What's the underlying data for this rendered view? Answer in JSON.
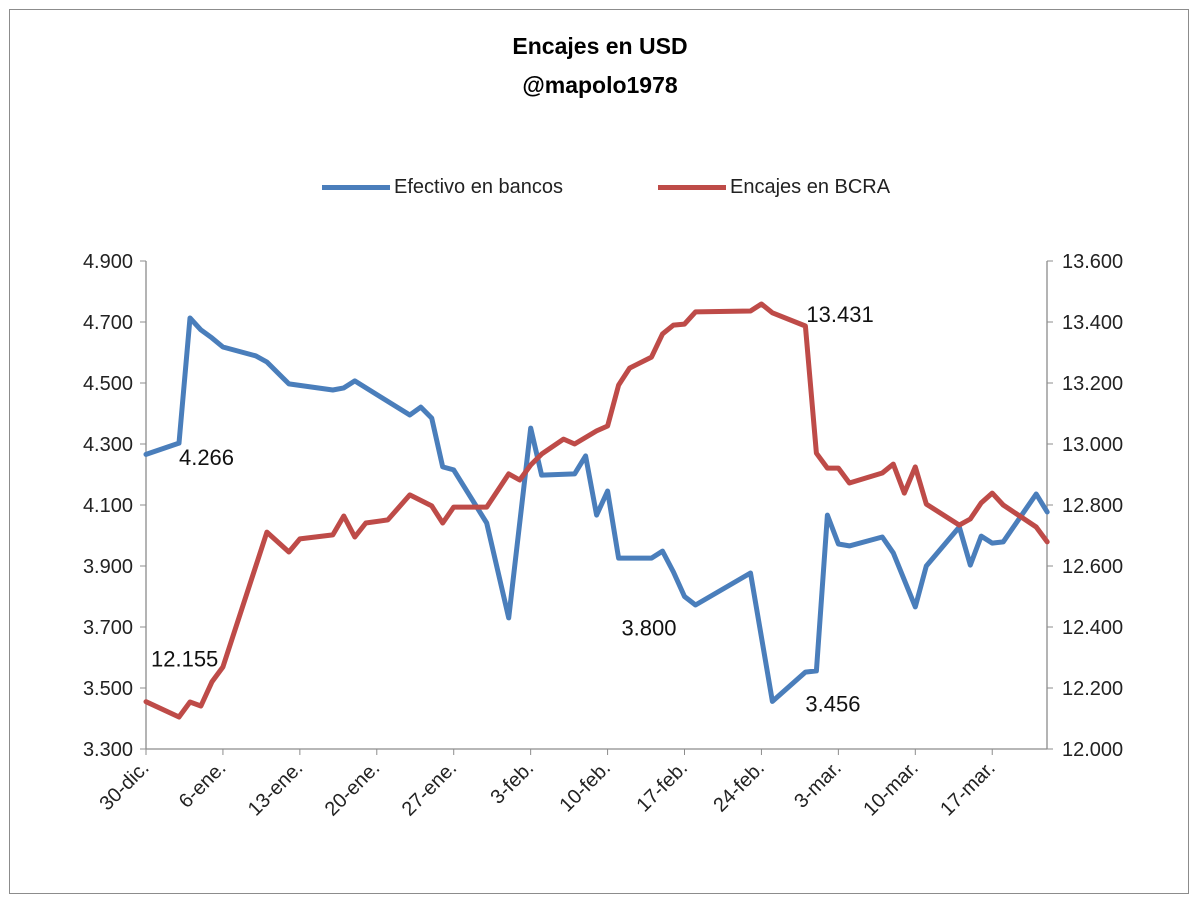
{
  "chart_data": {
    "type": "line",
    "title": "Encajes en USD",
    "subtitle": "@mapolo1978",
    "x_ticks": [
      "30-dic.",
      "6-ene.",
      "13-ene.",
      "20-ene.",
      "27-ene.",
      "3-feb.",
      "10-feb.",
      "17-feb.",
      "24-feb.",
      "3-mar.",
      "10-mar.",
      "17-mar."
    ],
    "y_left": {
      "range": [
        3300,
        4900
      ],
      "ticks": [
        "3.300",
        "3.500",
        "3.700",
        "3.900",
        "4.100",
        "4.300",
        "4.500",
        "4.700",
        "4.900"
      ]
    },
    "y_right": {
      "range": [
        12000,
        13600
      ],
      "ticks": [
        "12.000",
        "12.200",
        "12.400",
        "12.600",
        "12.800",
        "13.000",
        "13.200",
        "13.400",
        "13.600"
      ]
    },
    "grid": false,
    "legend": "top",
    "series": [
      {
        "name": "Efectivo en bancos",
        "axis": "left",
        "color": "#4a7ebb",
        "points": [
          [
            "30-dic.",
            4266
          ],
          [
            "2-ene.",
            4303
          ],
          [
            "3-ene.",
            4713
          ],
          [
            "4-ene.",
            4674
          ],
          [
            "5-ene.",
            4648
          ],
          [
            "6-ene.",
            4618
          ],
          [
            "9-ene.",
            4589
          ],
          [
            "10-ene.",
            4569
          ],
          [
            "12-ene.",
            4497
          ],
          [
            "16-ene.",
            4477
          ],
          [
            "17-ene.",
            4484
          ],
          [
            "18-ene.",
            4507
          ],
          [
            "23-ene.",
            4395
          ],
          [
            "24-ene.",
            4421
          ],
          [
            "25-ene.",
            4385
          ],
          [
            "26-ene.",
            4225
          ],
          [
            "27-ene.",
            4215
          ],
          [
            "30-ene.",
            4041
          ],
          [
            "1-feb.",
            3730
          ],
          [
            "3-feb.",
            4352
          ],
          [
            "4-feb.",
            4198
          ],
          [
            "7-feb.",
            4202
          ],
          [
            "8-feb.",
            4261
          ],
          [
            "9-feb.",
            4067
          ],
          [
            "10-feb.",
            4146
          ],
          [
            "11-feb.",
            3926
          ],
          [
            "14-feb.",
            3926
          ],
          [
            "15-feb.",
            3949
          ],
          [
            "16-feb.",
            3880
          ],
          [
            "17-feb.",
            3800
          ],
          [
            "18-feb.",
            3772
          ],
          [
            "23-feb.",
            3877
          ],
          [
            "25-feb.",
            3456
          ],
          [
            "28-feb.",
            3552
          ],
          [
            "1-mar.",
            3556
          ],
          [
            "2-mar.",
            4067
          ],
          [
            "3-mar.",
            3972
          ],
          [
            "4-mar.",
            3966
          ],
          [
            "7-mar.",
            3995
          ],
          [
            "8-mar.",
            3943
          ],
          [
            "10-mar.",
            3766
          ],
          [
            "11-mar.",
            3900
          ],
          [
            "14-mar.",
            4028
          ],
          [
            "15-mar.",
            3903
          ],
          [
            "16-mar.",
            3998
          ],
          [
            "17-mar.",
            3975
          ],
          [
            "18-mar.",
            3979
          ],
          [
            "21-mar.",
            4136
          ],
          [
            "22-mar.",
            4077
          ]
        ]
      },
      {
        "name": "Encajes en BCRA",
        "axis": "right",
        "color": "#be4b48",
        "points": [
          [
            "30-dic.",
            12155
          ],
          [
            "2-ene.",
            12105
          ],
          [
            "3-ene.",
            12154
          ],
          [
            "4-ene.",
            12141
          ],
          [
            "5-ene.",
            12220
          ],
          [
            "6-ene.",
            12269
          ],
          [
            "10-ene.",
            12711
          ],
          [
            "12-ene.",
            12646
          ],
          [
            "13-ene.",
            12689
          ],
          [
            "16-ene.",
            12702
          ],
          [
            "17-ene.",
            12764
          ],
          [
            "18-ene.",
            12695
          ],
          [
            "19-ene.",
            12741
          ],
          [
            "21-ene.",
            12751
          ],
          [
            "23-ene.",
            12833
          ],
          [
            "25-ene.",
            12797
          ],
          [
            "26-ene.",
            12741
          ],
          [
            "27-ene.",
            12793
          ],
          [
            "30-ene.",
            12793
          ],
          [
            "1-feb.",
            12902
          ],
          [
            "2-feb.",
            12882
          ],
          [
            "3-feb.",
            12931
          ],
          [
            "4-feb.",
            12967
          ],
          [
            "6-feb.",
            13016
          ],
          [
            "7-feb.",
            13000
          ],
          [
            "9-feb.",
            13043
          ],
          [
            "10-feb.",
            13059
          ],
          [
            "11-feb.",
            13193
          ],
          [
            "12-feb.",
            13249
          ],
          [
            "14-feb.",
            13285
          ],
          [
            "15-feb.",
            13361
          ],
          [
            "16-feb.",
            13390
          ],
          [
            "17-feb.",
            13393
          ],
          [
            "18-feb.",
            13433
          ],
          [
            "23-feb.",
            13436
          ],
          [
            "24-feb.",
            13459
          ],
          [
            "25-feb.",
            13430
          ],
          [
            "28-feb.",
            13387
          ],
          [
            "1-mar.",
            12970
          ],
          [
            "2-mar.",
            12921
          ],
          [
            "3-mar.",
            12921
          ],
          [
            "4-mar.",
            12872
          ],
          [
            "7-mar.",
            12905
          ],
          [
            "8-mar.",
            12934
          ],
          [
            "9-mar.",
            12839
          ],
          [
            "10-mar.",
            12925
          ],
          [
            "11-mar.",
            12803
          ],
          [
            "14-mar.",
            12734
          ],
          [
            "15-mar.",
            12754
          ],
          [
            "16-mar.",
            12807
          ],
          [
            "17-mar.",
            12839
          ],
          [
            "18-mar.",
            12800
          ],
          [
            "21-mar.",
            12728
          ],
          [
            "22-mar.",
            12679
          ]
        ]
      }
    ],
    "annotations": [
      {
        "text": "4.266",
        "series": 0,
        "at": "2-ene."
      },
      {
        "text": "12.155",
        "series": 1,
        "at": "30-dic."
      },
      {
        "text": "13.431",
        "series": 1,
        "at": "28-feb."
      },
      {
        "text": "3.800",
        "series": 0,
        "at": "17-feb."
      },
      {
        "text": "3.456",
        "series": 0,
        "at": "25-feb."
      }
    ]
  }
}
